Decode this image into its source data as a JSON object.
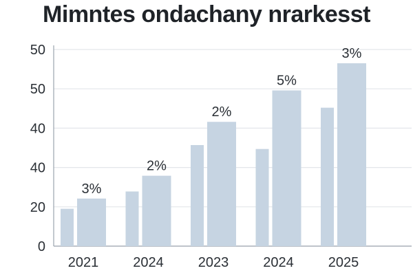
{
  "title": "Mimntes ondachany nrarkesst",
  "colors": {
    "bar": "#c6d4e2",
    "grid": "#e3e6ea",
    "axis": "#9aa3ad",
    "text": "#2a2f35"
  },
  "chart_data": {
    "type": "bar",
    "title": "Mimntes ondachany nrarkesst",
    "categories": [
      "2021",
      "2024",
      "2023",
      "2024",
      "2025"
    ],
    "y_tick_labels": [
      "0",
      "20",
      "40",
      "40",
      "50",
      "50"
    ],
    "ylim": [
      0,
      50
    ],
    "grid": true,
    "series": [
      {
        "values": [
          9.5,
          13.9,
          25.7,
          24.7,
          35.2
        ]
      },
      {
        "values": [
          12.1,
          17.9,
          31.6,
          39.6,
          46.5
        ]
      }
    ],
    "data_labels": [
      "3%",
      "2%",
      "2%",
      "5%",
      "3%"
    ]
  }
}
